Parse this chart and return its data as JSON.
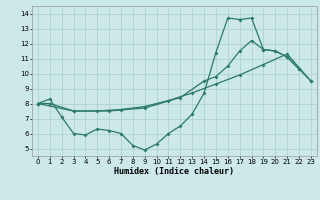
{
  "bg_color": "#cce8e8",
  "grid_color": "#aacece",
  "line_color": "#2a7a6a",
  "xlabel": "Humidex (Indice chaleur)",
  "xlim": [
    -0.5,
    23.5
  ],
  "ylim": [
    4.5,
    14.5
  ],
  "line1_x": [
    0,
    1,
    2,
    3,
    4,
    5,
    6,
    7,
    8,
    9,
    10,
    11,
    12,
    13,
    14,
    15,
    16,
    17,
    18,
    19,
    20,
    21,
    22
  ],
  "line1_y": [
    8.0,
    8.3,
    7.1,
    6.0,
    5.9,
    6.3,
    6.2,
    6.0,
    5.2,
    4.9,
    5.3,
    6.0,
    6.5,
    7.3,
    8.7,
    11.4,
    13.7,
    13.6,
    13.7,
    11.6,
    11.5,
    11.1,
    10.3
  ],
  "line2_x": [
    0,
    1,
    3,
    5,
    7,
    9,
    11,
    13,
    15,
    17,
    19,
    21,
    23
  ],
  "line2_y": [
    8.0,
    8.0,
    7.5,
    7.5,
    7.6,
    7.8,
    8.2,
    8.7,
    9.3,
    9.9,
    10.6,
    11.3,
    9.5
  ],
  "line3_x": [
    0,
    3,
    6,
    9,
    12,
    14,
    15,
    16,
    17,
    18,
    19,
    20,
    21,
    22,
    23
  ],
  "line3_y": [
    8.0,
    7.5,
    7.5,
    7.7,
    8.4,
    9.5,
    9.8,
    10.5,
    11.5,
    12.2,
    11.6,
    11.5,
    11.1,
    10.3,
    9.5
  ]
}
